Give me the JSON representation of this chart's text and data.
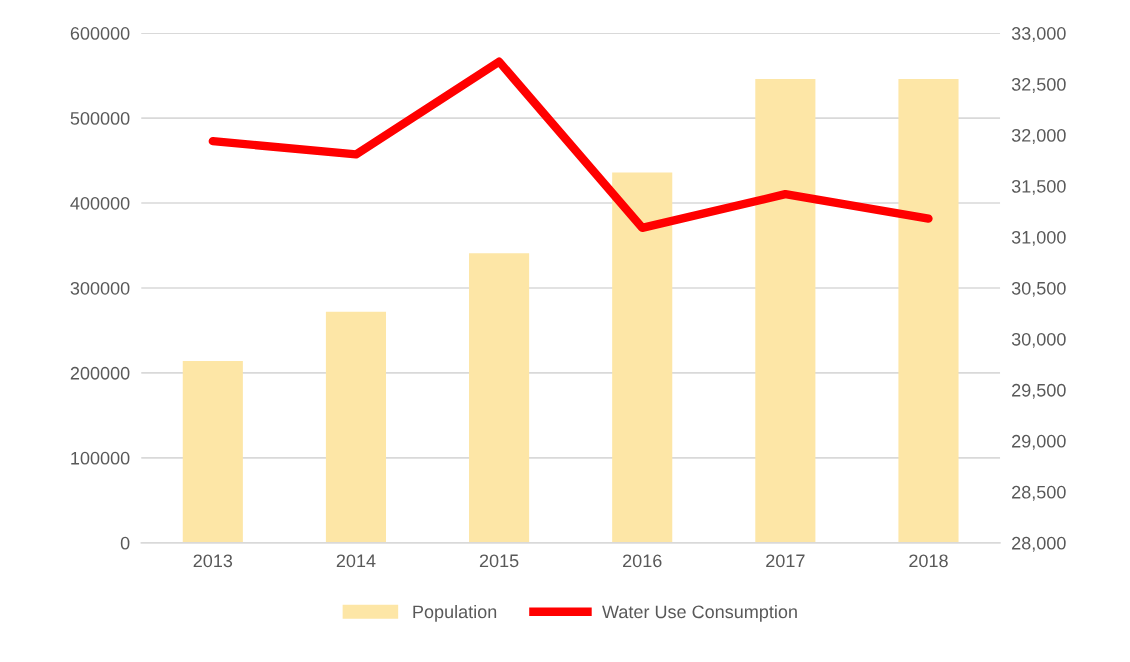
{
  "chart_data": {
    "type": "bar",
    "categories": [
      "2013",
      "2014",
      "2015",
      "2016",
      "2017",
      "2018"
    ],
    "series": [
      {
        "name": "Population",
        "color": "#fde6a6",
        "values": [
          214000,
          272000,
          341000,
          436000,
          546000,
          546000
        ]
      },
      {
        "name": "Water Use Consumption",
        "type": "line",
        "axis": "y2",
        "color": "#ff0000",
        "values": [
          31940,
          31810,
          32720,
          31090,
          31420,
          31180
        ]
      }
    ],
    "ylim": [
      0,
      600000
    ],
    "yticks": [
      0,
      100000,
      200000,
      300000,
      400000,
      500000,
      600000
    ],
    "y2lim": [
      28000,
      33000
    ],
    "y2ticks": [
      {
        "value": 28000,
        "label": "28,000"
      },
      {
        "value": 28500,
        "label": "28,500"
      },
      {
        "value": 29000,
        "label": "29,000"
      },
      {
        "value": 29500,
        "label": "29,500"
      },
      {
        "value": 30000,
        "label": "30,000"
      },
      {
        "value": 30500,
        "label": "30,500"
      },
      {
        "value": 31000,
        "label": "31,000"
      },
      {
        "value": 31500,
        "label": "31,500"
      },
      {
        "value": 32000,
        "label": "32,000"
      },
      {
        "value": 32500,
        "label": "32,500"
      },
      {
        "value": 33000,
        "label": "33,000"
      }
    ],
    "grid": "y",
    "legend": "bottom",
    "marker": "none",
    "line_style": "solid"
  }
}
